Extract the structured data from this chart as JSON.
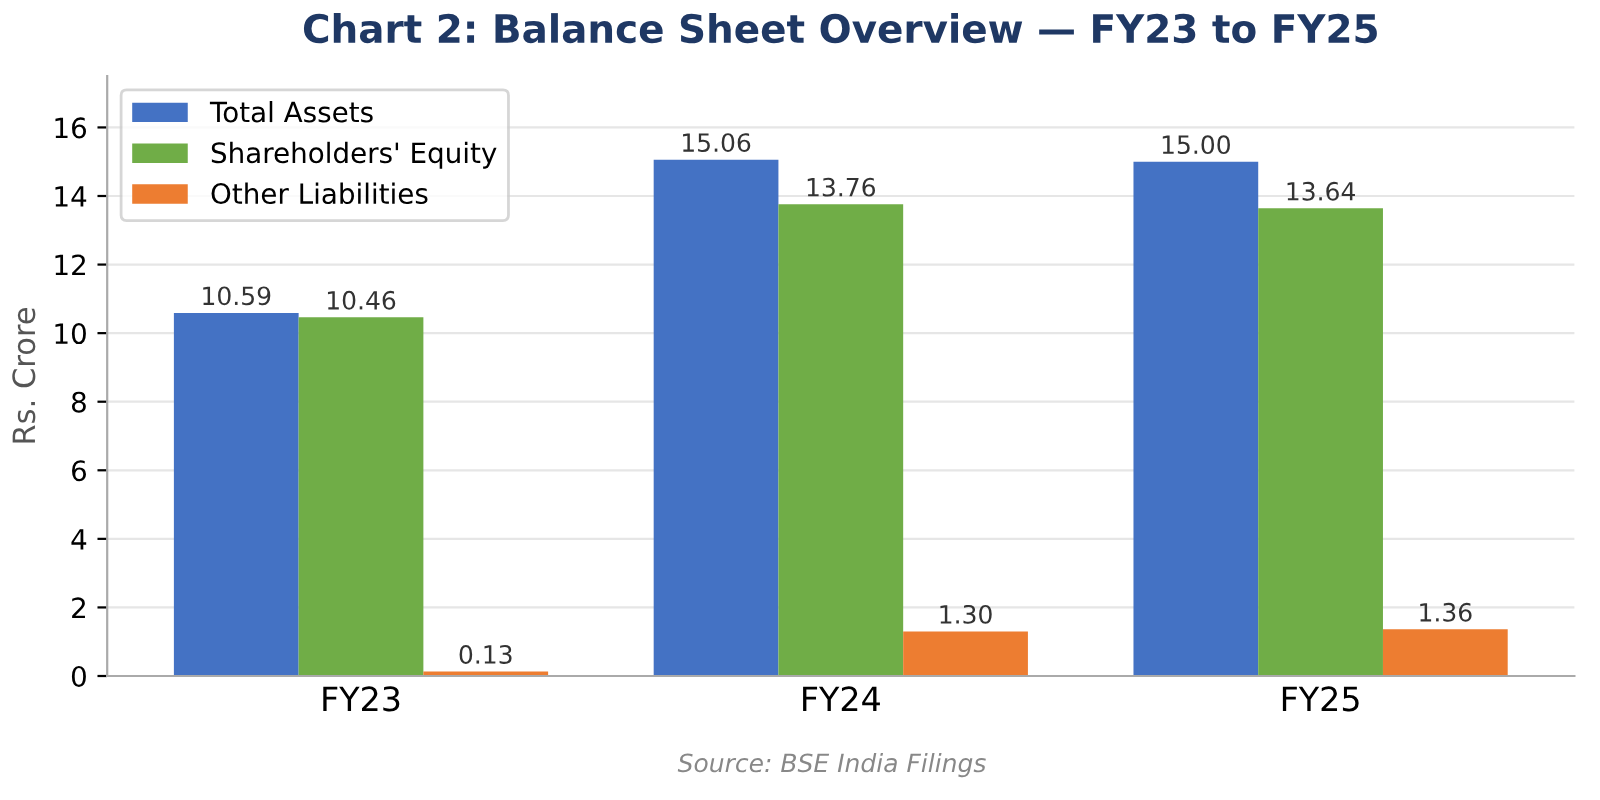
{
  "chart_data": {
    "type": "bar",
    "title": "Chart 2: Balance Sheet Overview — FY23 to FY25",
    "ylabel": "Rs. Crore",
    "categories": [
      "FY23",
      "FY24",
      "FY25"
    ],
    "series": [
      {
        "name": "Total Assets",
        "color": "#4472c4",
        "values": [
          10.59,
          15.06,
          15.0
        ],
        "value_labels": [
          "10.59",
          "15.06",
          "15.00"
        ]
      },
      {
        "name": "Shareholders' Equity",
        "color": "#70ad47",
        "values": [
          10.46,
          13.76,
          13.64
        ],
        "value_labels": [
          "10.46",
          "13.76",
          "13.64"
        ]
      },
      {
        "name": "Other Liabilities",
        "color": "#ed7d31",
        "values": [
          0.13,
          1.3,
          1.36
        ],
        "value_labels": [
          "0.13",
          "1.30",
          "1.36"
        ]
      }
    ],
    "ylim": [
      0,
      17.5
    ],
    "yticks": [
      0,
      2,
      4,
      6,
      8,
      10,
      12,
      14,
      16
    ],
    "grid": "y",
    "legend": "top left",
    "annotations": [
      "Source: BSE India Filings"
    ]
  }
}
